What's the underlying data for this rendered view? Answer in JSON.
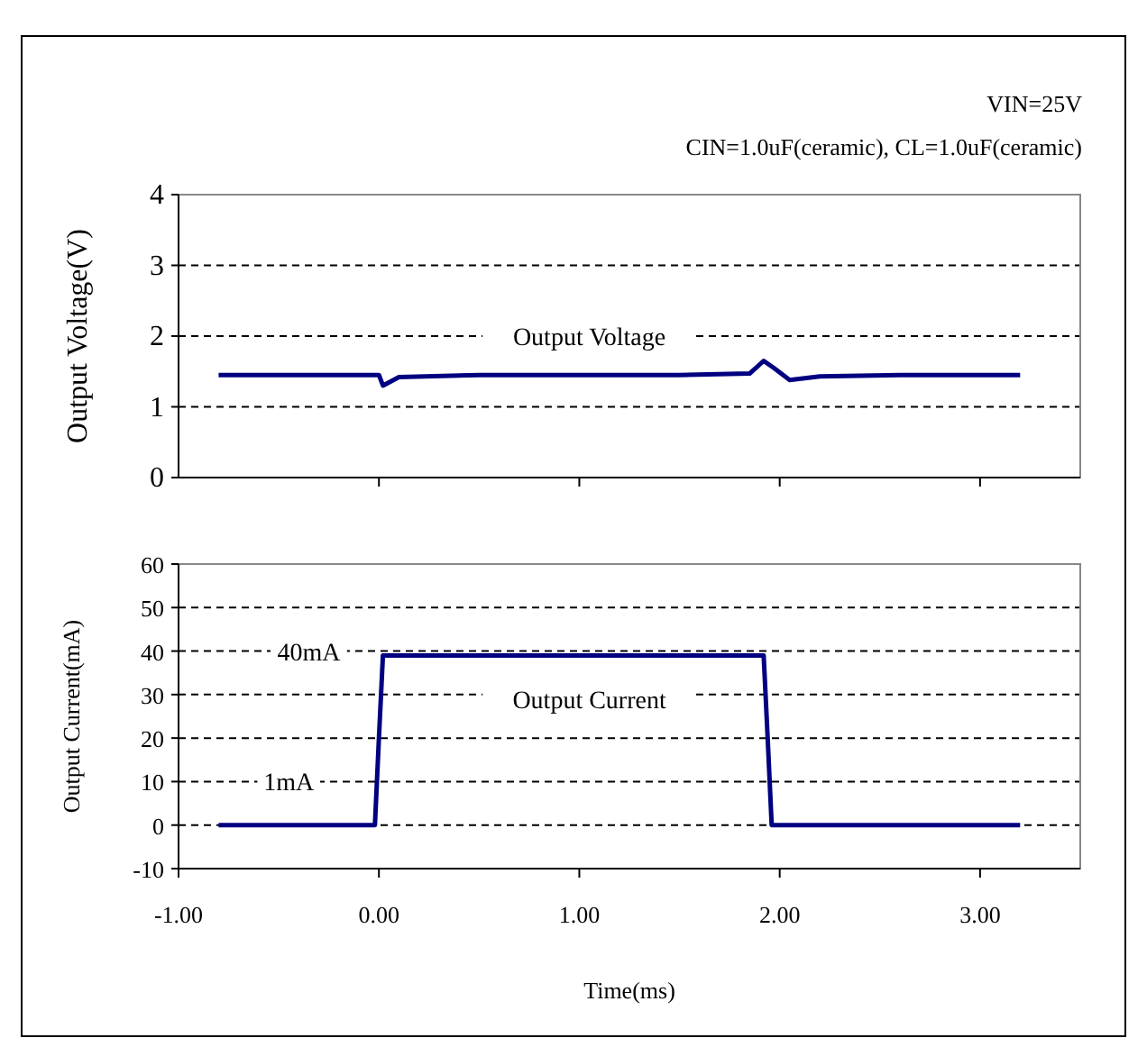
{
  "chart_data": [
    {
      "type": "line",
      "ylabel": "Output Voltage(V)",
      "annotations": [
        "VIN=25V",
        "CIN=1.0uF(ceramic), CL=1.0uF(ceramic)",
        "Output Voltage"
      ],
      "xlim": [
        -1,
        3.5
      ],
      "xticks": [
        {
          "value": 0,
          "label": null
        },
        {
          "value": 1,
          "label": null
        },
        {
          "value": 2,
          "label": null
        },
        {
          "value": 3,
          "label": null
        }
      ],
      "ylim": [
        0,
        4
      ],
      "yticks": [
        0,
        1,
        2,
        3,
        4
      ],
      "grid": "y",
      "tick_labels": "y",
      "series": [
        {
          "color": "#000080",
          "x": [
            -0.8,
            -0.5,
            -0.2,
            0,
            0.02,
            0.1,
            0.5,
            1.0,
            1.5,
            1.85,
            1.92,
            1.97,
            2.05,
            2.2,
            2.6,
            3.0,
            3.2
          ],
          "values": [
            1.45,
            1.45,
            1.45,
            1.45,
            1.3,
            1.42,
            1.45,
            1.45,
            1.45,
            1.47,
            1.65,
            1.55,
            1.38,
            1.43,
            1.45,
            1.45,
            1.45
          ]
        }
      ]
    },
    {
      "type": "line",
      "ylabel": "Output Current(mA)",
      "xlabel": "Time(ms)",
      "annotations": [
        {
          "text": "40mA",
          "x": -0.35,
          "y": 40
        },
        "Output Current",
        {
          "text": "1mA",
          "x": -0.45,
          "y": 10
        }
      ],
      "xlim": [
        -1,
        3.5
      ],
      "xticks": [
        {
          "value": -1,
          "label": "-1.00"
        },
        {
          "value": 0,
          "label": "0.00"
        },
        {
          "value": 1,
          "label": "1.00"
        },
        {
          "value": 2,
          "label": "2.00"
        },
        {
          "value": 3,
          "label": "3.00"
        }
      ],
      "ylim": [
        -10,
        60
      ],
      "yticks": [
        -10,
        0,
        10,
        20,
        30,
        40,
        50,
        60
      ],
      "grid": "y",
      "series": [
        {
          "color": "#000080",
          "x": [
            -0.8,
            -0.02,
            0,
            0.02,
            0.5,
            1.0,
            1.5,
            1.92,
            1.94,
            1.96,
            2.5,
            3.2
          ],
          "values": [
            0,
            0,
            20,
            39,
            39,
            39,
            39,
            39,
            20,
            0,
            0,
            0
          ]
        }
      ]
    }
  ]
}
